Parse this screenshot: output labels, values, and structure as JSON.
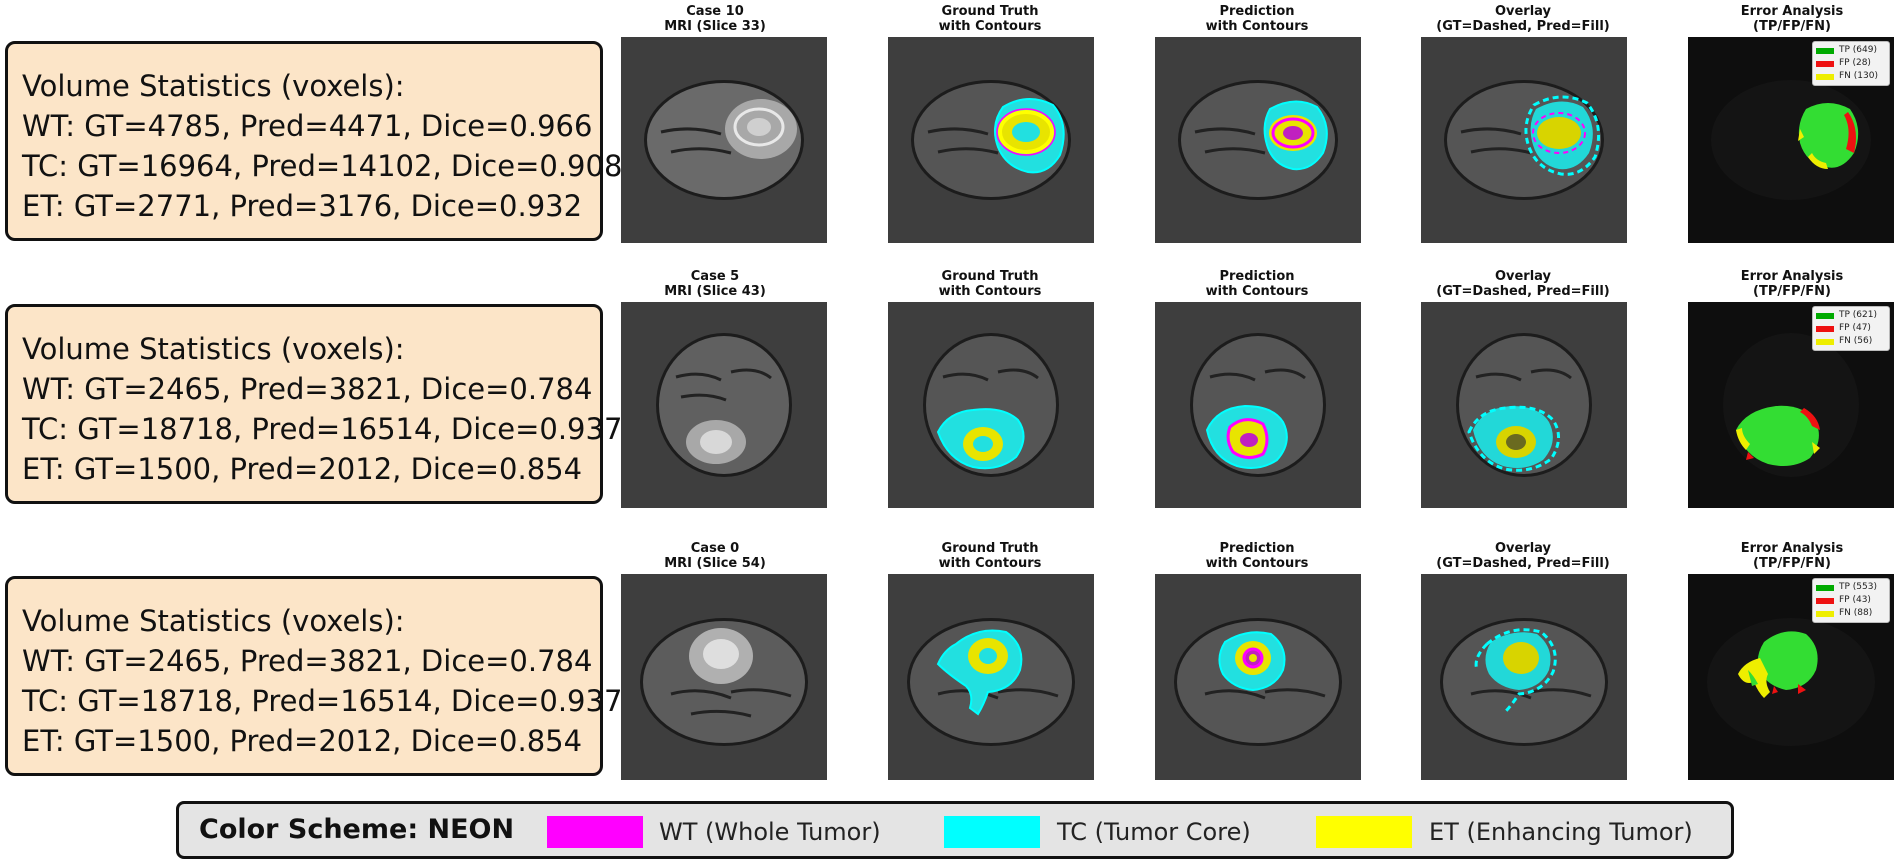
{
  "rows": [
    {
      "stats": {
        "heading": "Volume Statistics (voxels):",
        "wt": "WT: GT=4785, Pred=4471, Dice=0.966",
        "tc": "TC: GT=16964, Pred=14102, Dice=0.908",
        "et": "ET: GT=2771, Pred=3176, Dice=0.932"
      },
      "mri_title": [
        "Case 10",
        "MRI (Slice 33)"
      ],
      "error_legend": {
        "tp": "TP (649)",
        "fp": "FP (28)",
        "fn": "FN (130)"
      }
    },
    {
      "stats": {
        "heading": "Volume Statistics (voxels):",
        "wt": "WT: GT=2465, Pred=3821, Dice=0.784",
        "tc": "TC: GT=18718, Pred=16514, Dice=0.937",
        "et": "ET: GT=1500, Pred=2012, Dice=0.854"
      },
      "mri_title": [
        "Case 5",
        "MRI (Slice 43)"
      ],
      "error_legend": {
        "tp": "TP (621)",
        "fp": "FP (47)",
        "fn": "FN (56)"
      }
    },
    {
      "stats": {
        "heading": "Volume Statistics (voxels):",
        "wt": "WT: GT=2465, Pred=3821, Dice=0.784",
        "tc": "TC: GT=18718, Pred=16514, Dice=0.937",
        "et": "ET: GT=1500, Pred=2012, Dice=0.854"
      },
      "mri_title": [
        "Case 0",
        "MRI (Slice 54)"
      ],
      "error_legend": {
        "tp": "TP (553)",
        "fp": "FP (43)",
        "fn": "FN (88)"
      }
    }
  ],
  "panel_titles": {
    "gt": [
      "Ground Truth",
      "with Contours"
    ],
    "pred": [
      "Prediction",
      "with Contours"
    ],
    "overlay": [
      "Overlay",
      "(GT=Dashed, Pred=Fill)"
    ],
    "error": [
      "Error Analysis",
      "(TP/FP/FN)"
    ]
  },
  "legend": {
    "title": "Color Scheme: NEON",
    "items": [
      {
        "label": "WT (Whole Tumor)",
        "color": "#ff00ff"
      },
      {
        "label": "TC (Tumor Core)",
        "color": "#00ffff"
      },
      {
        "label": "ET (Enhancing Tumor)",
        "color": "#ffff00"
      }
    ]
  },
  "colors": {
    "tp": "#00aa00",
    "fp": "#ee1111",
    "fn": "#eeee00",
    "tp_region": "#33dd33",
    "stats_bg": "#fce5c8",
    "panel_bg": "#3e3e3e",
    "error_bg": "#0e0e0e"
  }
}
